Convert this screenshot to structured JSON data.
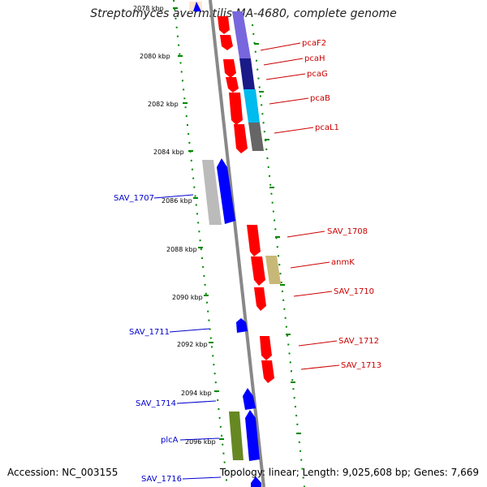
{
  "title": "Streptomyces avermitilis MA-4680, complete genome",
  "accession": "Accession: NC_003155",
  "summary": "Topology: linear; Length: 9,025,608 bp; Genes: 7,669",
  "ticks": [
    "2078 kbp",
    "2080 kbp",
    "2082 kbp",
    "2084 kbp",
    "2086 kbp",
    "2088 kbp",
    "2090 kbp",
    "2092 kbp",
    "2094 kbp",
    "2096 kbp"
  ],
  "labels_right": [
    "pcaF2",
    "pcaH",
    "pcaG",
    "pcaB",
    "pcaL1",
    "SAV_1708",
    "anmK",
    "SAV_1710",
    "SAV_1712",
    "SAV_1713"
  ],
  "labels_left": [
    "SAV_1707",
    "SAV_1711",
    "SAV_1714",
    "plcA",
    "SAV_1716"
  ],
  "colors": {
    "forward_gene": "#ff0000",
    "reverse_gene": "#0000ff",
    "label_forward": "#cc0000",
    "label_reverse": "#0000cc",
    "tick_green": "#008800",
    "axis": "#888888"
  }
}
